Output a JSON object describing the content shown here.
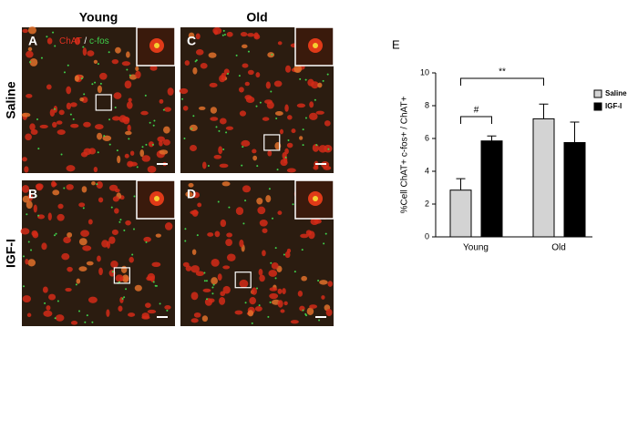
{
  "figure": {
    "columns": [
      "Young",
      "Old"
    ],
    "rows": [
      "Saline",
      "IGF-I"
    ],
    "panels": [
      "A",
      "B",
      "C",
      "D"
    ],
    "stain": {
      "first": "ChAT",
      "separator": "/",
      "second": "c-fos"
    },
    "chart_panel": "E"
  },
  "chart_data": {
    "type": "bar",
    "categories": [
      "Young",
      "Old"
    ],
    "series": [
      {
        "name": "Saline",
        "color": "#d3d3d3",
        "values": [
          2.85,
          7.2
        ],
        "errors": [
          0.7,
          0.9
        ]
      },
      {
        "name": "IGF-I",
        "color": "#000000",
        "values": [
          5.85,
          5.75
        ],
        "errors": [
          0.3,
          1.25
        ]
      }
    ],
    "ylim": [
      0,
      10
    ],
    "yticks": [
      0,
      2,
      4,
      6,
      8,
      10
    ],
    "ylabel": "%Cell ChAT+ c-fos+ / ChAT+",
    "annotations": [
      "#",
      "**"
    ]
  }
}
